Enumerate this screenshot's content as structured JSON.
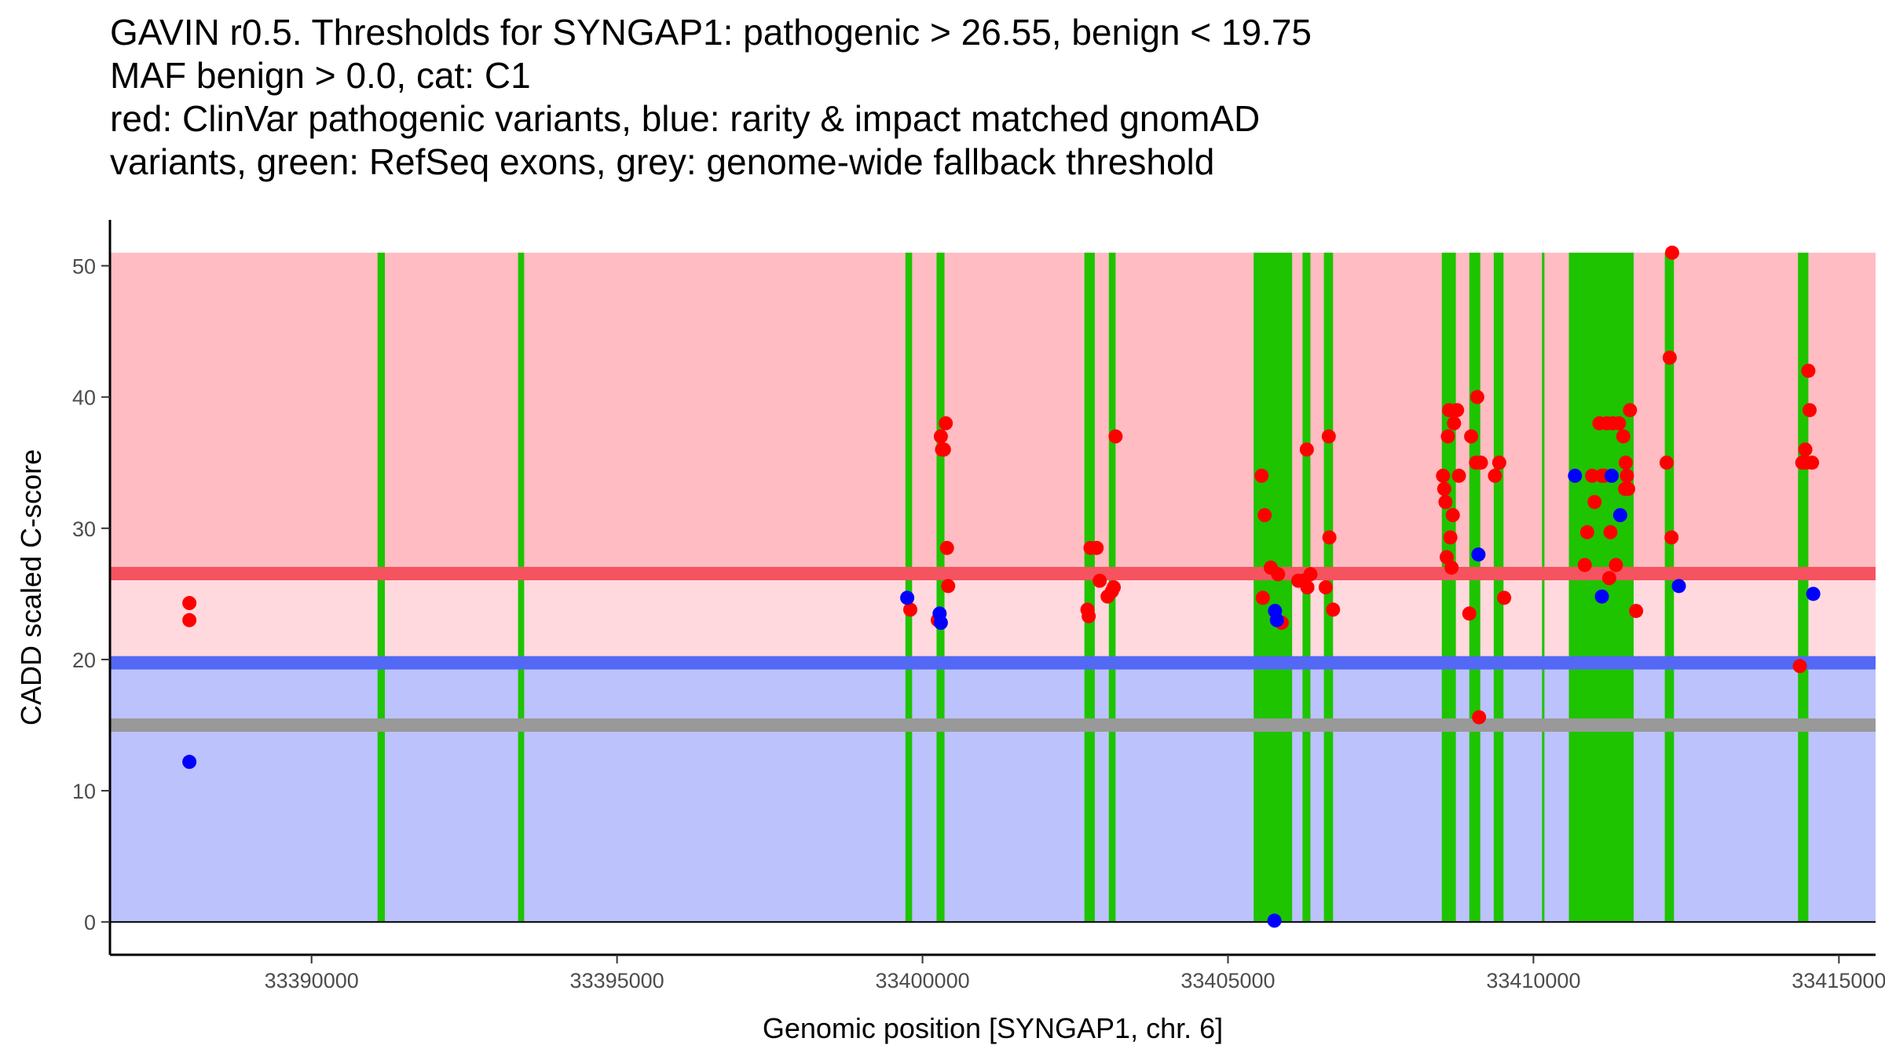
{
  "chart_data": {
    "type": "scatter",
    "title": [
      "GAVIN r0.5. Thresholds for SYNGAP1: pathogenic > 26.55, benign < 19.75",
      "MAF benign > 0.0, cat: C1",
      "red: ClinVar pathogenic variants, blue: rarity & impact matched gnomAD",
      "variants, green: RefSeq exons, grey: genome-wide fallback threshold"
    ],
    "xlabel": "Genomic position [SYNGAP1, chr. 6]",
    "ylabel": "CADD scaled C-score",
    "xlim": [
      33386700,
      33415600
    ],
    "ylim": [
      -2.5,
      53.5
    ],
    "xticks": [
      33390000,
      33395000,
      33400000,
      33405000,
      33410000,
      33415000
    ],
    "yticks": [
      0,
      10,
      20,
      30,
      40,
      50
    ],
    "thresholds": {
      "pathogenic": 26.55,
      "benign": 19.75,
      "fallback": 15,
      "maf_benign": 0.0,
      "category": "C1"
    },
    "region_top": 51,
    "colors": {
      "pathogenic_region": "#ffbcc2",
      "middle_region": "#ffd9de",
      "benign_region": "#bcc2fb",
      "pathogenic_line": "#f5535f",
      "benign_line": "#5468f6",
      "fallback_line": "#999999",
      "exon": "#1ec400",
      "pathogenic_point": "#ff0000",
      "benign_point": "#0000ff"
    },
    "exons": [
      [
        33391080,
        33391200
      ],
      [
        33393380,
        33393480
      ],
      [
        33399720,
        33399830
      ],
      [
        33400230,
        33400360
      ],
      [
        33402650,
        33402820
      ],
      [
        33403050,
        33403160
      ],
      [
        33405420,
        33406050
      ],
      [
        33406220,
        33406350
      ],
      [
        33406570,
        33406720
      ],
      [
        33408500,
        33408730
      ],
      [
        33408950,
        33409130
      ],
      [
        33409350,
        33409510
      ],
      [
        33410140,
        33410180
      ],
      [
        33410580,
        33411640
      ],
      [
        33412150,
        33412300
      ],
      [
        33414330,
        33414500
      ]
    ],
    "series": [
      {
        "name": "ClinVar pathogenic",
        "color": "#ff0000",
        "points": [
          [
            33388000,
            24.3
          ],
          [
            33388000,
            23.0
          ],
          [
            33399800,
            23.8
          ],
          [
            33400250,
            23.0
          ],
          [
            33400300,
            37.0
          ],
          [
            33400320,
            36.0
          ],
          [
            33400350,
            36.0
          ],
          [
            33400380,
            38.0
          ],
          [
            33400400,
            28.5
          ],
          [
            33400420,
            25.6
          ],
          [
            33402750,
            28.5
          ],
          [
            33402850,
            28.5
          ],
          [
            33402700,
            23.8
          ],
          [
            33402720,
            23.3
          ],
          [
            33402900,
            26.0
          ],
          [
            33403030,
            24.8
          ],
          [
            33403100,
            25.2
          ],
          [
            33403130,
            25.5
          ],
          [
            33403160,
            37.0
          ],
          [
            33405550,
            34.0
          ],
          [
            33405570,
            24.7
          ],
          [
            33405600,
            31.0
          ],
          [
            33405700,
            27.0
          ],
          [
            33405820,
            26.5
          ],
          [
            33405880,
            22.8
          ],
          [
            33406150,
            26.0
          ],
          [
            33406220,
            26.0
          ],
          [
            33406290,
            36.0
          ],
          [
            33406300,
            25.5
          ],
          [
            33406350,
            26.5
          ],
          [
            33406600,
            25.5
          ],
          [
            33406650,
            37.0
          ],
          [
            33406660,
            29.3
          ],
          [
            33406720,
            23.8
          ],
          [
            33408520,
            34.0
          ],
          [
            33408540,
            33.0
          ],
          [
            33408560,
            32.0
          ],
          [
            33408580,
            27.8
          ],
          [
            33408600,
            37.0
          ],
          [
            33408620,
            39.0
          ],
          [
            33408640,
            29.3
          ],
          [
            33408660,
            27.0
          ],
          [
            33408680,
            31.0
          ],
          [
            33408700,
            38.0
          ],
          [
            33408750,
            39.0
          ],
          [
            33408780,
            34.0
          ],
          [
            33408950,
            23.5
          ],
          [
            33408980,
            37.0
          ],
          [
            33409060,
            35.0
          ],
          [
            33409080,
            40.0
          ],
          [
            33409110,
            15.6
          ],
          [
            33409140,
            35.0
          ],
          [
            33409370,
            34.0
          ],
          [
            33409440,
            35.0
          ],
          [
            33409520,
            24.7
          ],
          [
            33410840,
            27.2
          ],
          [
            33410880,
            29.7
          ],
          [
            33410960,
            34.0
          ],
          [
            33411000,
            32.0
          ],
          [
            33411080,
            38.0
          ],
          [
            33411120,
            34.0
          ],
          [
            33411160,
            34.0
          ],
          [
            33411200,
            38.0
          ],
          [
            33411240,
            26.2
          ],
          [
            33411260,
            29.7
          ],
          [
            33411300,
            38.0
          ],
          [
            33411350,
            27.2
          ],
          [
            33411400,
            38.0
          ],
          [
            33411470,
            37.0
          ],
          [
            33411500,
            33.0
          ],
          [
            33411510,
            35.0
          ],
          [
            33411530,
            34.0
          ],
          [
            33411550,
            33.0
          ],
          [
            33411580,
            39.0
          ],
          [
            33411680,
            23.7
          ],
          [
            33412180,
            35.0
          ],
          [
            33412230,
            43.0
          ],
          [
            33412260,
            29.3
          ],
          [
            33412270,
            51.0
          ],
          [
            33414360,
            19.5
          ],
          [
            33414400,
            35.0
          ],
          [
            33414450,
            36.0
          ],
          [
            33414470,
            35.0
          ],
          [
            33414500,
            42.0
          ],
          [
            33414520,
            39.0
          ],
          [
            33414560,
            35.0
          ]
        ]
      },
      {
        "name": "gnomAD matched",
        "color": "#0000ff",
        "points": [
          [
            33388000,
            12.2
          ],
          [
            33399750,
            24.7
          ],
          [
            33400280,
            23.5
          ],
          [
            33400300,
            22.8
          ],
          [
            33405770,
            23.7
          ],
          [
            33405800,
            23.0
          ],
          [
            33405760,
            0.1
          ],
          [
            33409100,
            28.0
          ],
          [
            33410680,
            34.0
          ],
          [
            33411120,
            24.8
          ],
          [
            33411280,
            34.0
          ],
          [
            33411420,
            31.0
          ],
          [
            33412380,
            25.6
          ],
          [
            33414580,
            25.0
          ]
        ]
      }
    ]
  }
}
